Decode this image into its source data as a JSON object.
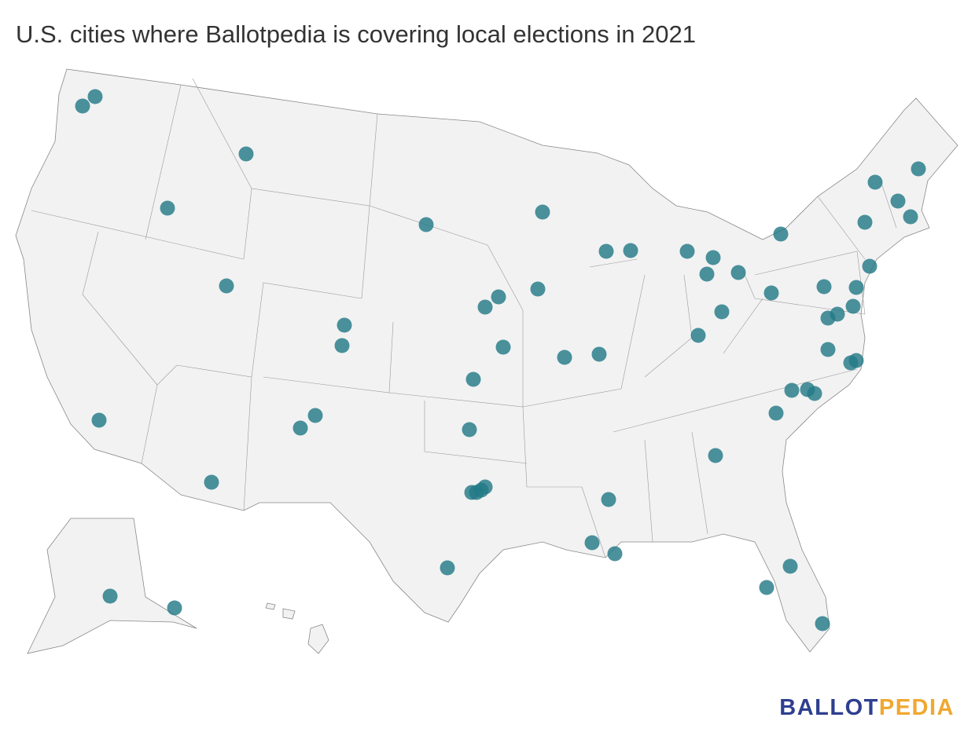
{
  "header": {
    "title": "U.S. cities where Ballotpedia is covering local elections in 2021"
  },
  "logo": {
    "first": "BALLOT",
    "second": "PEDIA"
  }
}
